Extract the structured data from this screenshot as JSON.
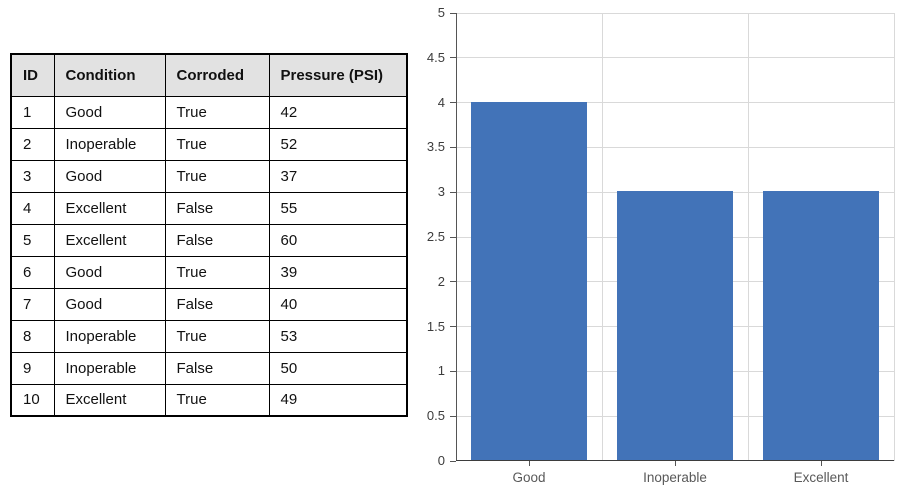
{
  "table": {
    "headers": [
      "ID",
      "Condition",
      "Corroded",
      "Pressure (PSI)"
    ],
    "rows": [
      [
        "1",
        "Good",
        "True",
        "42"
      ],
      [
        "2",
        "Inoperable",
        "True",
        "52"
      ],
      [
        "3",
        "Good",
        "True",
        "37"
      ],
      [
        "4",
        "Excellent",
        "False",
        "55"
      ],
      [
        "5",
        "Excellent",
        "False",
        "60"
      ],
      [
        "6",
        "Good",
        "True",
        "39"
      ],
      [
        "7",
        "Good",
        "False",
        "40"
      ],
      [
        "8",
        "Inoperable",
        "True",
        "53"
      ],
      [
        "9",
        "Inoperable",
        "False",
        "50"
      ],
      [
        "10",
        "Excellent",
        "True",
        "49"
      ]
    ]
  },
  "chart_data": {
    "type": "bar",
    "categories": [
      "Good",
      "Inoperable",
      "Excellent"
    ],
    "values": [
      4,
      3,
      3
    ],
    "title": "",
    "xlabel": "",
    "ylabel": "",
    "ylim": [
      0,
      5
    ],
    "ytick_step": 0.5,
    "ytick_labels": [
      "0",
      "0.5",
      "1",
      "1.5",
      "2",
      "2.5",
      "3",
      "3.5",
      "4",
      "4.5",
      "5"
    ],
    "grid": true,
    "legend": false,
    "bar_color": "#4273B8"
  },
  "colors": {
    "bar": "#4273B8",
    "table_header_bg": "#E2E2E2",
    "table_border": "#000000",
    "gridline": "#D9D9D9",
    "axis": "#555555",
    "ytick_label": "#3C3C3C",
    "xtick_label": "#595959"
  }
}
